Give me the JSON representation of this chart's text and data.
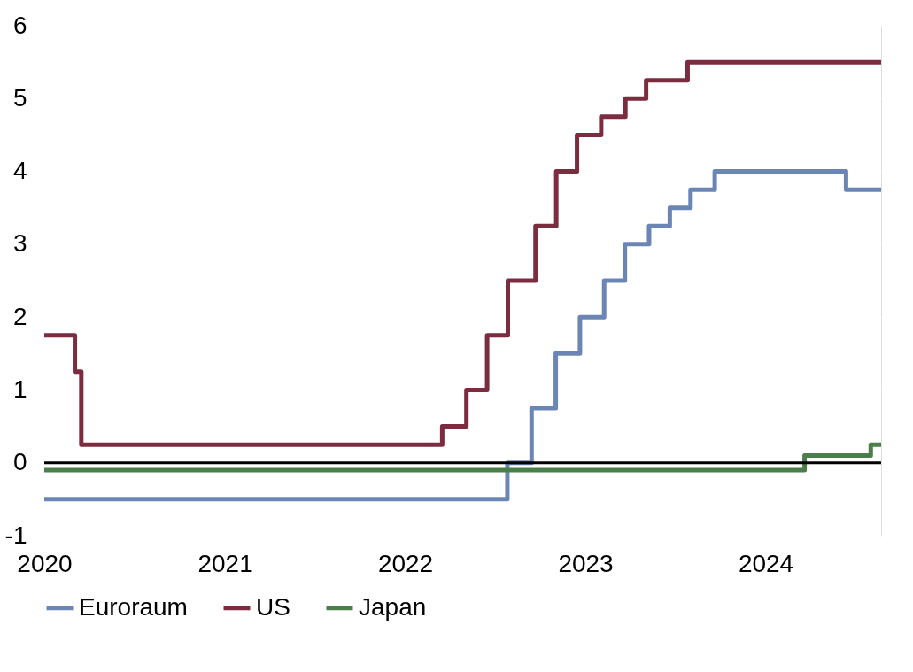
{
  "chart_data": {
    "type": "step",
    "xlim": [
      "2020-01-01",
      "2024-08-22"
    ],
    "xticks": [
      "2020",
      "2021",
      "2022",
      "2023",
      "2024"
    ],
    "ylim": [
      -1,
      6
    ],
    "yticks": [
      -1,
      0,
      1,
      2,
      3,
      4,
      5,
      6
    ],
    "grid": true,
    "legend": "bottom",
    "line_style": "solid",
    "marker": "none",
    "ref_lines": [
      {
        "axis": "y",
        "value": 0,
        "color": "#000000"
      }
    ],
    "series": [
      {
        "name": "Euroraum",
        "color": "#6b86b5",
        "x": [
          "2020-01-01",
          "2022-07-27",
          "2022-09-14",
          "2022-11-02",
          "2022-12-21",
          "2023-02-08",
          "2023-03-22",
          "2023-05-10",
          "2023-06-21",
          "2023-08-02",
          "2023-09-20",
          "2024-06-12",
          "2024-08-22"
        ],
        "values": [
          -0.5,
          0,
          0.75,
          1.5,
          2.0,
          2.5,
          3.0,
          3.25,
          3.5,
          3.75,
          4.0,
          3.75,
          3.75
        ]
      },
      {
        "name": "US",
        "color": "#7b2d3f",
        "x": [
          "2020-01-01",
          "2020-03-03",
          "2020-03-16",
          "2022-03-17",
          "2022-05-05",
          "2022-06-16",
          "2022-07-28",
          "2022-09-22",
          "2022-11-03",
          "2022-12-15",
          "2023-02-02",
          "2023-03-23",
          "2023-05-04",
          "2023-07-27",
          "2024-08-22"
        ],
        "values": [
          1.75,
          1.25,
          0.25,
          0.5,
          1.0,
          1.75,
          2.5,
          3.25,
          4.0,
          4.5,
          4.75,
          5.0,
          5.25,
          5.5,
          5.5
        ]
      },
      {
        "name": "Japan",
        "color": "#4a7f4a",
        "x": [
          "2020-01-01",
          "2024-03-20",
          "2024-08-01",
          "2024-08-22"
        ],
        "values": [
          -0.1,
          0.1,
          0.25,
          0.25
        ]
      }
    ]
  }
}
